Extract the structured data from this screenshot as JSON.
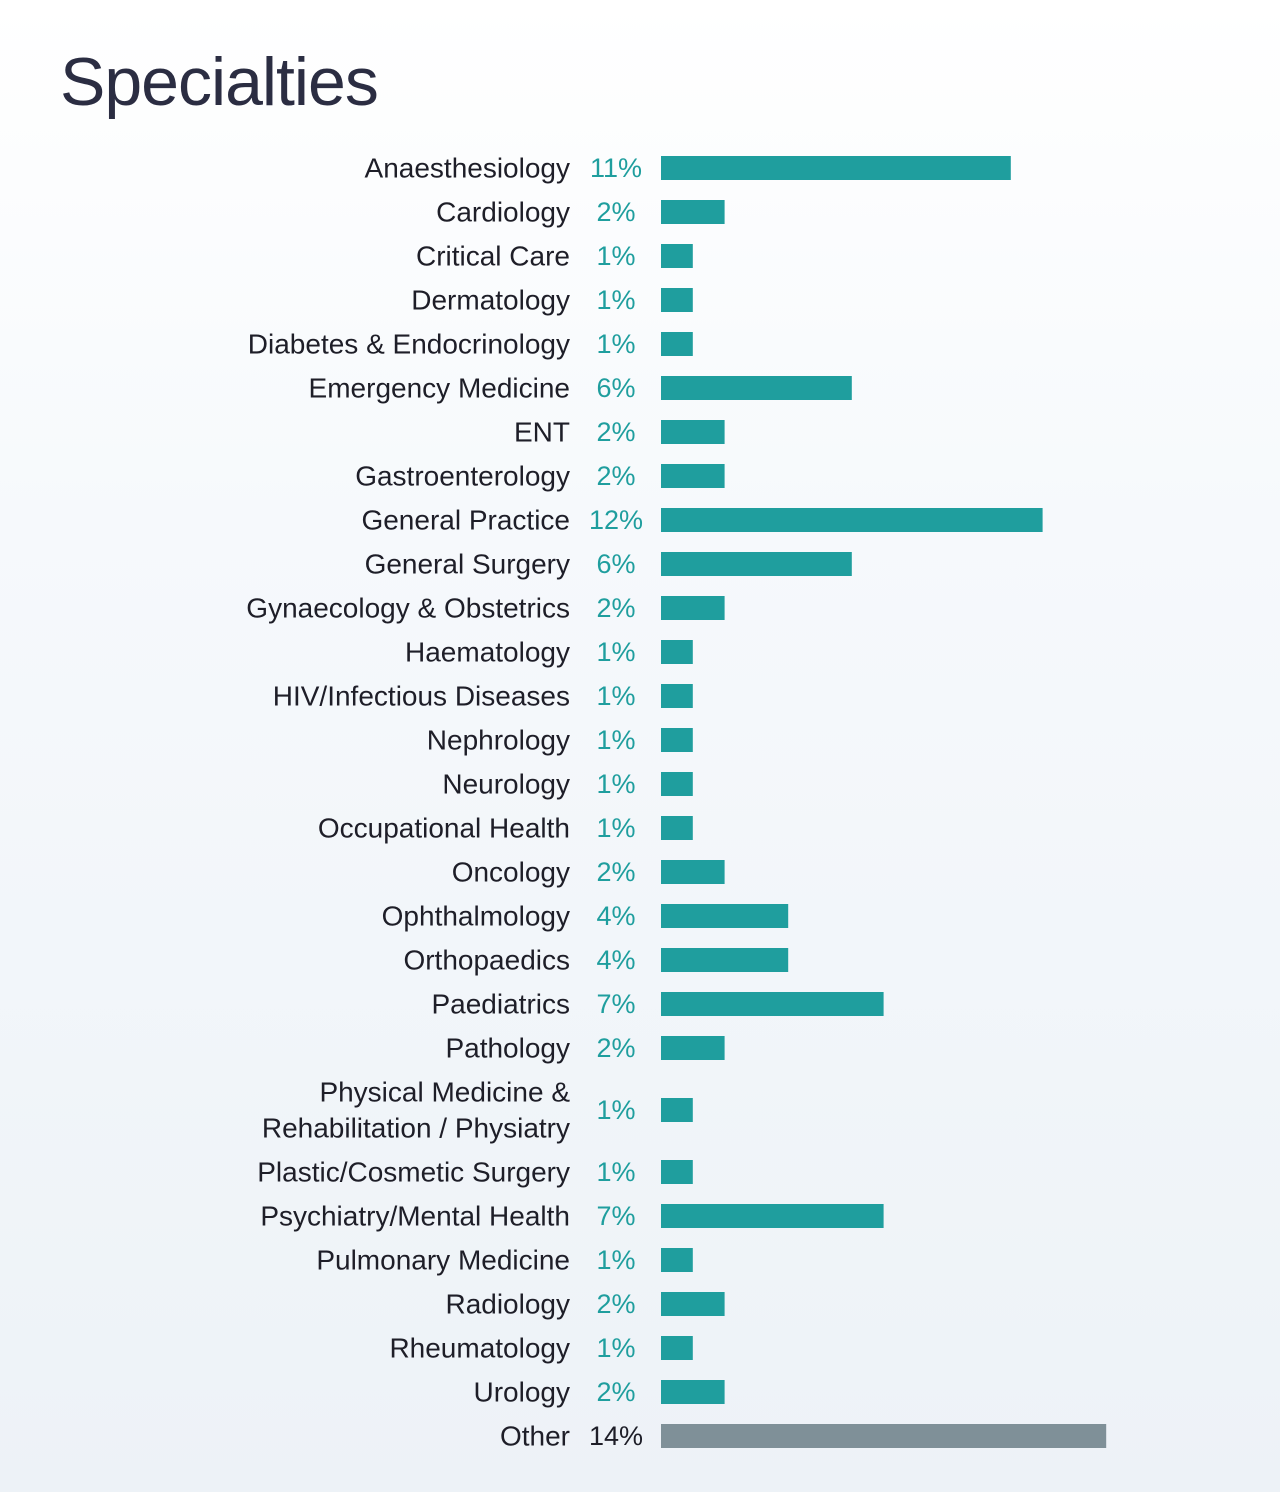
{
  "title": "Specialties",
  "colors": {
    "bar": "#1f9e9e",
    "bar_other": "#7f9098",
    "value_text": "#1f9e9e",
    "value_text_other": "#1e1e28",
    "label_text": "#1e1e28",
    "title_text": "#2b2d42"
  },
  "chart_data": {
    "type": "bar",
    "orientation": "horizontal",
    "title": "Specialties",
    "unit": "%",
    "grid": false,
    "categories": [
      "Anaesthesiology",
      "Cardiology",
      "Critical Care",
      "Dermatology",
      "Diabetes & Endocrinology",
      "Emergency Medicine",
      "ENT",
      "Gastroenterology",
      "General Practice",
      "General Surgery",
      "Gynaecology & Obstetrics",
      "Haematology",
      "HIV/Infectious Diseases",
      "Nephrology",
      "Neurology",
      "Occupational Health",
      "Oncology",
      "Ophthalmology",
      "Orthopaedics",
      "Paediatrics",
      "Pathology",
      [
        "Physical Medicine &",
        "Rehabilitation / Physiatry"
      ],
      "Plastic/Cosmetic Surgery",
      "Psychiatry/Mental Health",
      "Pulmonary Medicine",
      "Radiology",
      "Rheumatology",
      "Urology",
      "Other"
    ],
    "values": [
      11,
      2,
      1,
      1,
      1,
      6,
      2,
      2,
      12,
      6,
      2,
      1,
      1,
      1,
      1,
      1,
      2,
      4,
      4,
      7,
      2,
      1,
      1,
      7,
      1,
      2,
      1,
      2,
      14
    ],
    "value_labels": [
      "11%",
      "2%",
      "1%",
      "1%",
      "1%",
      "6%",
      "2%",
      "2%",
      "12%",
      "6%",
      "2%",
      "1%",
      "1%",
      "1%",
      "1%",
      "1%",
      "2%",
      "4%",
      "4%",
      "7%",
      "2%",
      "1%",
      "1%",
      "7%",
      "1%",
      "2%",
      "1%",
      "2%",
      "14%"
    ],
    "highlight_last": true
  }
}
